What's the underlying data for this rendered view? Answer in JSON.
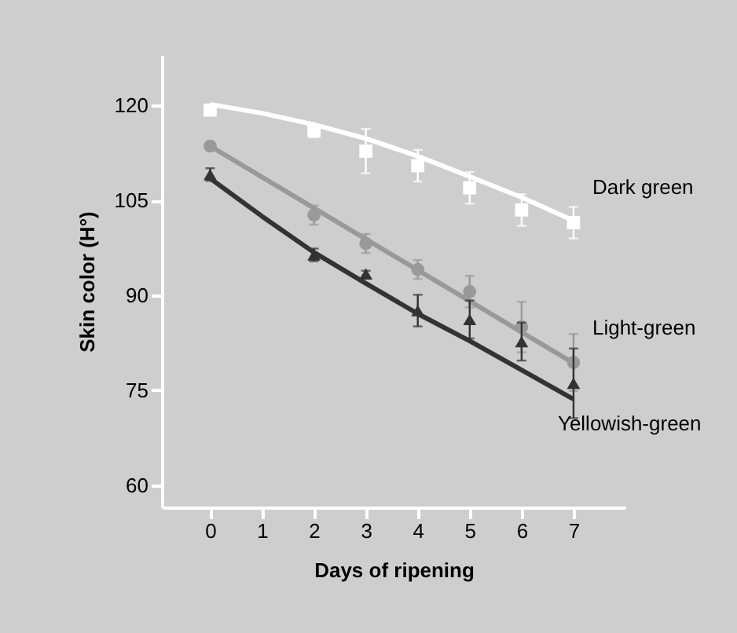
{
  "chart_data": {
    "type": "scatter",
    "xlabel": "Days of ripening",
    "ylabel": "Skin color (H°)",
    "xlim": [
      -0.93,
      8
    ],
    "xticks": [
      0,
      1,
      2,
      3,
      4,
      5,
      6,
      7
    ],
    "ylim": [
      56.5,
      128
    ],
    "yticks": [
      60,
      75,
      90,
      105,
      120
    ],
    "grid": false,
    "legend": false,
    "series": [
      {
        "name": "Dark green",
        "marker": "square",
        "color": "#ffffff",
        "x": [
          0,
          2,
          3,
          4,
          5,
          6,
          7
        ],
        "values": [
          119.3,
          116,
          112.8,
          110.5,
          107,
          103.5,
          101.5
        ],
        "errors": [
          0.5,
          1,
          3.5,
          2.5,
          2.5,
          2.5,
          2.5
        ]
      },
      {
        "type": "line",
        "marker": "none",
        "color": "#ffffff",
        "x": [
          0,
          1,
          2,
          3,
          4,
          5,
          6,
          7
        ],
        "values": [
          120.2,
          118.8,
          117,
          114.8,
          112,
          108.8,
          105.5,
          101.8
        ]
      },
      {
        "name": "Light-green",
        "marker": "circle",
        "color": "#999999",
        "x": [
          0,
          2,
          3,
          4,
          5,
          6,
          7
        ],
        "values": [
          113.6,
          102.7,
          98.2,
          94.1,
          90.6,
          85,
          79.4
        ],
        "errors": [
          0.5,
          1.5,
          1.5,
          1.5,
          2.5,
          4,
          4.5
        ]
      },
      {
        "type": "line",
        "marker": "none",
        "color": "#999999",
        "x": [
          0,
          7
        ],
        "values": [
          113.6,
          79.3
        ]
      },
      {
        "name": "Yellowish-green",
        "marker": "triangle",
        "color": "#333333",
        "x": [
          0,
          2,
          3,
          4,
          5,
          6,
          7
        ],
        "values": [
          109.1,
          96.4,
          93.4,
          87.6,
          86.2,
          82.7,
          76.1
        ],
        "errors": [
          1,
          1,
          0.5,
          2.5,
          3,
          3,
          5.5
        ]
      },
      {
        "type": "line",
        "marker": "none",
        "color": "#333333",
        "x": [
          0,
          1,
          2,
          3,
          4,
          5,
          6,
          7
        ],
        "values": [
          108.5,
          102.5,
          96.8,
          91.9,
          87.1,
          82.8,
          78.2,
          73.6
        ]
      }
    ]
  }
}
